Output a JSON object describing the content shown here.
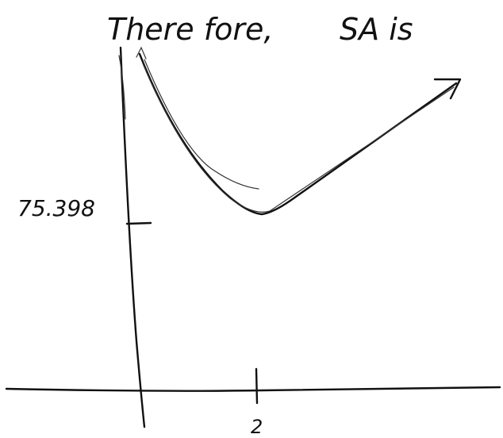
{
  "heading": {
    "left": "There fore,",
    "right": "SA is"
  },
  "axis_labels": {
    "y_tick": "75.398",
    "x_tick": "2"
  }
}
